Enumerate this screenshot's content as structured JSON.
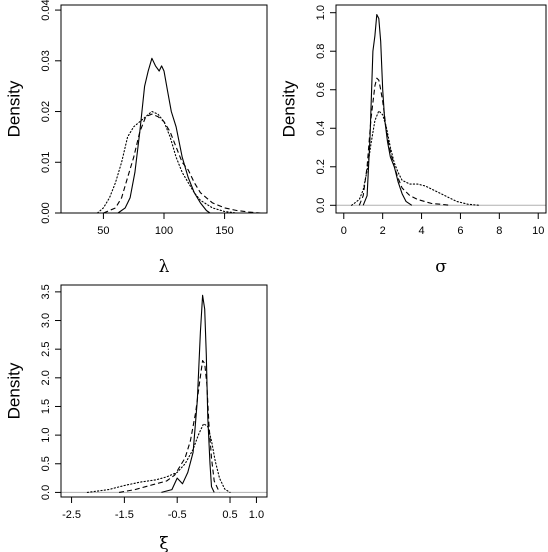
{
  "chart_data": [
    {
      "type": "line",
      "xlabel": "λ",
      "ylabel": "Density",
      "xlim": [
        15,
        185
      ],
      "ylim": [
        0,
        0.041
      ],
      "xticks": [
        50,
        100,
        150
      ],
      "yticks": [
        0.0,
        0.01,
        0.02,
        0.03,
        0.04
      ],
      "ytick_labels": [
        "0.00",
        "0.01",
        "0.02",
        "0.03",
        "0.04"
      ],
      "baseline": 0,
      "series": [
        {
          "style": "solid",
          "x": [
            62,
            68,
            72,
            76,
            80,
            84,
            87,
            90,
            93,
            96,
            98,
            100,
            103,
            106,
            110,
            115,
            120,
            125,
            130,
            135,
            138
          ],
          "y": [
            0,
            0.001,
            0.003,
            0.008,
            0.016,
            0.025,
            0.028,
            0.0305,
            0.029,
            0.028,
            0.029,
            0.028,
            0.024,
            0.02,
            0.017,
            0.011,
            0.007,
            0.004,
            0.002,
            0.0005,
            0
          ]
        },
        {
          "style": "dashed",
          "x": [
            50,
            55,
            60,
            65,
            70,
            75,
            80,
            85,
            90,
            95,
            100,
            105,
            110,
            115,
            120,
            125,
            130,
            135,
            140,
            150,
            160,
            170,
            180
          ],
          "y": [
            0,
            0.0005,
            0.001,
            0.003,
            0.007,
            0.011,
            0.016,
            0.019,
            0.0195,
            0.019,
            0.018,
            0.016,
            0.013,
            0.01,
            0.0085,
            0.006,
            0.004,
            0.003,
            0.002,
            0.001,
            0.0005,
            0.0002,
            0
          ]
        },
        {
          "style": "dotted",
          "x": [
            45,
            50,
            55,
            60,
            65,
            70,
            75,
            80,
            85,
            90,
            95,
            100,
            105,
            110,
            115,
            120,
            125,
            130,
            140,
            150,
            160
          ],
          "y": [
            0,
            0.001,
            0.003,
            0.006,
            0.01,
            0.015,
            0.017,
            0.018,
            0.019,
            0.02,
            0.0195,
            0.018,
            0.015,
            0.011,
            0.008,
            0.006,
            0.004,
            0.0025,
            0.001,
            0.0003,
            0
          ]
        }
      ]
    },
    {
      "type": "line",
      "xlabel": "σ",
      "ylabel": "Density",
      "xlim": [
        -0.4,
        10.4
      ],
      "ylim": [
        -0.04,
        1.04
      ],
      "xticks": [
        0,
        2,
        4,
        6,
        8,
        10
      ],
      "yticks": [
        0.0,
        0.2,
        0.4,
        0.6,
        0.8,
        1.0
      ],
      "ytick_labels": [
        "0.0",
        "0.2",
        "0.4",
        "0.6",
        "0.8",
        "1.0"
      ],
      "baseline": 0,
      "series": [
        {
          "style": "solid",
          "x": [
            1.0,
            1.2,
            1.35,
            1.5,
            1.6,
            1.7,
            1.8,
            1.9,
            2.0,
            2.1,
            2.25,
            2.4,
            2.6,
            2.8,
            3.0,
            3.2,
            3.5
          ],
          "y": [
            0,
            0.05,
            0.35,
            0.8,
            0.88,
            0.99,
            0.97,
            0.85,
            0.6,
            0.45,
            0.33,
            0.25,
            0.2,
            0.12,
            0.06,
            0.02,
            0
          ]
        },
        {
          "style": "dashed",
          "x": [
            0.8,
            1.0,
            1.2,
            1.4,
            1.6,
            1.7,
            1.8,
            1.9,
            2.0,
            2.2,
            2.4,
            2.6,
            2.8,
            3.0,
            3.4,
            3.8,
            4.5,
            5.0,
            5.5
          ],
          "y": [
            0,
            0.05,
            0.2,
            0.45,
            0.62,
            0.66,
            0.65,
            0.6,
            0.54,
            0.38,
            0.28,
            0.2,
            0.14,
            0.09,
            0.05,
            0.03,
            0.01,
            0.005,
            0
          ]
        },
        {
          "style": "dotted",
          "x": [
            0.4,
            0.8,
            1.0,
            1.2,
            1.4,
            1.6,
            1.8,
            2.0,
            2.2,
            2.4,
            2.6,
            2.8,
            3.0,
            3.4,
            3.8,
            4.2,
            4.6,
            5.0,
            5.4,
            5.8,
            6.4,
            7.0
          ],
          "y": [
            0,
            0.03,
            0.08,
            0.18,
            0.32,
            0.44,
            0.49,
            0.47,
            0.4,
            0.3,
            0.22,
            0.17,
            0.13,
            0.11,
            0.11,
            0.1,
            0.08,
            0.06,
            0.04,
            0.02,
            0.005,
            0
          ]
        }
      ]
    },
    {
      "type": "line",
      "xlabel": "ξ",
      "ylabel": "Density",
      "xlim": [
        -2.7,
        1.2
      ],
      "ylim": [
        -0.08,
        3.62
      ],
      "xticks": [
        -2.5,
        -1.5,
        -0.5,
        0.5,
        1.0
      ],
      "xtick_labels": [
        "-2.5",
        "-1.5",
        "-0.5",
        "0.5",
        "1.0"
      ],
      "yticks": [
        0.0,
        0.5,
        1.0,
        1.5,
        2.0,
        2.5,
        3.0,
        3.5
      ],
      "ytick_labels": [
        "0.0",
        "0.5",
        "1.0",
        "1.5",
        "2.0",
        "2.5",
        "3.0",
        "3.5"
      ],
      "baseline": 0,
      "series": [
        {
          "style": "solid",
          "x": [
            -0.8,
            -0.6,
            -0.5,
            -0.4,
            -0.3,
            -0.2,
            -0.12,
            -0.06,
            -0.02,
            0.02,
            0.05,
            0.08,
            0.12,
            0.15,
            0.2
          ],
          "y": [
            0,
            0.05,
            0.25,
            0.15,
            0.35,
            0.7,
            1.6,
            2.8,
            3.44,
            3.2,
            2.4,
            1.3,
            0.5,
            0.1,
            0
          ]
        },
        {
          "style": "dashed",
          "x": [
            -1.6,
            -1.3,
            -1.1,
            -0.9,
            -0.7,
            -0.55,
            -0.45,
            -0.35,
            -0.25,
            -0.15,
            -0.08,
            -0.02,
            0.02,
            0.06,
            0.1,
            0.15,
            0.2,
            0.3
          ],
          "y": [
            0,
            0.05,
            0.1,
            0.15,
            0.2,
            0.3,
            0.45,
            0.6,
            0.9,
            1.4,
            1.9,
            2.3,
            2.25,
            1.9,
            1.2,
            0.6,
            0.2,
            0
          ]
        },
        {
          "style": "dotted",
          "x": [
            -2.2,
            -1.8,
            -1.5,
            -1.2,
            -0.9,
            -0.7,
            -0.5,
            -0.35,
            -0.2,
            -0.1,
            0.0,
            0.08,
            0.15,
            0.22,
            0.3,
            0.4,
            0.5
          ],
          "y": [
            0,
            0.05,
            0.12,
            0.18,
            0.22,
            0.27,
            0.35,
            0.5,
            0.75,
            1.0,
            1.2,
            1.15,
            0.9,
            0.55,
            0.25,
            0.06,
            0
          ]
        }
      ]
    }
  ]
}
